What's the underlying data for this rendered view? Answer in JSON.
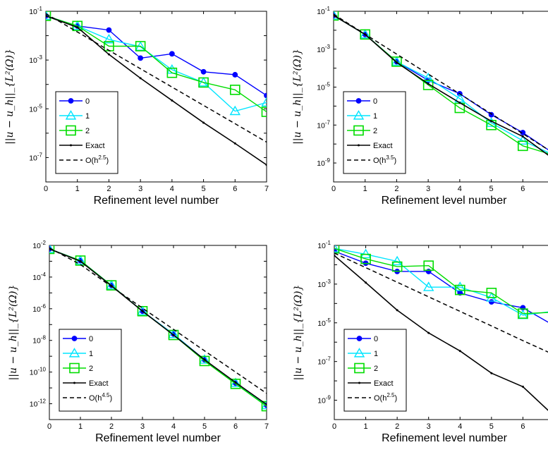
{
  "chart_data": [
    {
      "type": "line",
      "xlabel": "Refinement level number",
      "ylabel": "||u − u_h||_{L²(Ω)}",
      "yscale": "log",
      "x": [
        0,
        1,
        2,
        3,
        4,
        5,
        6,
        7
      ],
      "xlim": [
        0,
        7
      ],
      "ylim": [
        1e-08,
        0.1
      ],
      "yticks": [
        1e-07,
        1e-05,
        0.001,
        0.1
      ],
      "ytick_labels": [
        {
          "base": "10",
          "exp": "-7"
        },
        {
          "base": "10",
          "exp": "-5"
        },
        {
          "base": "10",
          "exp": "-3"
        },
        {
          "base": "10",
          "exp": "-1"
        }
      ],
      "legend": "bottom-left",
      "series": [
        {
          "name": "0",
          "color": "#0000ff",
          "marker": "circle",
          "dash": "solid",
          "values": [
            0.065,
            0.025,
            0.017,
            0.0012,
            0.0018,
            0.00033,
            0.00025,
            3.5e-05
          ]
        },
        {
          "name": "1",
          "color": "#00e5ff",
          "marker": "triangle",
          "dash": "solid",
          "values": [
            0.065,
            0.025,
            0.007,
            0.0035,
            0.0004,
            0.00012,
            8e-06,
            1.8e-05
          ]
        },
        {
          "name": "2",
          "color": "#00dd00",
          "marker": "square",
          "dash": "solid",
          "values": [
            0.065,
            0.025,
            0.0037,
            0.0037,
            0.0003,
            0.00012,
            6e-05,
            7.5e-06
          ]
        },
        {
          "name": "Exact",
          "color": "#000000",
          "marker": "dot",
          "dash": "solid",
          "values": [
            0.065,
            0.022,
            0.0017,
            0.00018,
            2.2e-05,
            2.7e-06,
            3.8e-07,
            5e-08
          ]
        },
        {
          "name": "",
          "color": "#000000",
          "marker": "none",
          "dash": "dashed",
          "values": [
            0.08,
            0.0142,
            0.0025,
            0.00044,
            7.8e-05,
            1.38e-05,
            2.45e-06,
            4.3e-07
          ]
        }
      ],
      "legend_extra": {
        "label": "O(h",
        "exp": "2.5",
        "close": ")"
      }
    },
    {
      "type": "line",
      "xlabel": "Refinement level number",
      "ylabel": "||u − u_h||_{L²(Ω)}",
      "yscale": "log",
      "x": [
        0,
        1,
        2,
        3,
        4,
        5,
        6,
        7
      ],
      "xlim": [
        0,
        7
      ],
      "ylim": [
        1e-10,
        0.1
      ],
      "yticks": [
        1e-09,
        1e-07,
        1e-05,
        0.001,
        0.1
      ],
      "ytick_labels": [
        {
          "base": "10",
          "exp": "-9"
        },
        {
          "base": "10",
          "exp": "-7"
        },
        {
          "base": "10",
          "exp": "-5"
        },
        {
          "base": "10",
          "exp": "-3"
        },
        {
          "base": "10",
          "exp": "-1"
        }
      ],
      "legend": "bottom-left",
      "series": [
        {
          "name": "0",
          "color": "#0000ff",
          "marker": "circle",
          "dash": "solid",
          "values": [
            0.06,
            0.006,
            0.00022,
            2.3e-05,
            4.5e-06,
            3.5e-07,
            4e-08,
            3e-09
          ]
        },
        {
          "name": "1",
          "color": "#00e5ff",
          "marker": "triangle",
          "dash": "solid",
          "values": [
            0.06,
            0.006,
            0.00022,
            3e-05,
            2.5e-06,
            1.3e-07,
            1.5e-08,
            2.5e-09
          ]
        },
        {
          "name": "2",
          "color": "#00dd00",
          "marker": "square",
          "dash": "solid",
          "values": [
            0.06,
            0.006,
            0.00022,
            1.3e-05,
            8e-07,
            1e-07,
            8e-09,
            2.5e-09
          ]
        },
        {
          "name": "Exact",
          "color": "#000000",
          "marker": "dot",
          "dash": "solid",
          "values": [
            0.06,
            0.006,
            0.0002,
            1.5e-05,
            1.5e-06,
            1.6e-07,
            2.5e-08,
            1.5e-09
          ]
        },
        {
          "name": "",
          "color": "#000000",
          "marker": "none",
          "dash": "dashed",
          "values": [
            0.07,
            0.0062,
            0.00055,
            4.9e-05,
            4.4e-06,
            3.9e-07,
            3.5e-08,
            3.1e-09
          ]
        }
      ],
      "legend_extra": {
        "label": "O(h",
        "exp": "3.5",
        "close": ")"
      }
    },
    {
      "type": "line",
      "xlabel": "Refinement level number",
      "ylabel": "||u − u_h||_{L²(Ω)}",
      "yscale": "log",
      "x": [
        0,
        1,
        2,
        3,
        4,
        5,
        6,
        7
      ],
      "xlim": [
        0,
        7
      ],
      "ylim": [
        1e-13,
        0.01
      ],
      "yticks": [
        1e-12,
        1e-10,
        1e-08,
        1e-06,
        0.0001,
        0.01
      ],
      "ytick_labels": [
        {
          "base": "10",
          "exp": "-12"
        },
        {
          "base": "10",
          "exp": "-10"
        },
        {
          "base": "10",
          "exp": "-8"
        },
        {
          "base": "10",
          "exp": "-6"
        },
        {
          "base": "10",
          "exp": "-4"
        },
        {
          "base": "10",
          "exp": "-2"
        }
      ],
      "legend": "bottom-left",
      "series": [
        {
          "name": "0",
          "color": "#0000ff",
          "marker": "circle",
          "dash": "solid",
          "values": [
            0.006,
            0.0011,
            3e-05,
            7e-07,
            2.5e-08,
            6e-10,
            2e-11,
            8e-13
          ]
        },
        {
          "name": "1",
          "color": "#00e5ff",
          "marker": "triangle",
          "dash": "solid",
          "values": [
            0.006,
            0.0011,
            3e-05,
            7e-07,
            2.5e-08,
            6e-10,
            2e-11,
            8e-13
          ]
        },
        {
          "name": "2",
          "color": "#00dd00",
          "marker": "square",
          "dash": "solid",
          "values": [
            0.006,
            0.0011,
            3e-05,
            7e-07,
            2.2e-08,
            5e-10,
            1.8e-11,
            7e-13
          ]
        },
        {
          "name": "Exact",
          "color": "#000000",
          "marker": "dot",
          "dash": "solid",
          "values": [
            0.006,
            0.001,
            2.8e-05,
            7e-07,
            2.2e-08,
            6e-10,
            2.2e-11,
            9e-13
          ]
        },
        {
          "name": "",
          "color": "#000000",
          "marker": "none",
          "dash": "dashed",
          "values": [
            0.007,
            0.00062,
            2.5e-05,
            1.1e-06,
            5e-08,
            2.2e-09,
            1e-10,
            4.5e-12
          ]
        }
      ],
      "legend_extra": {
        "label": "O(h",
        "exp": "4.5",
        "close": ")"
      }
    },
    {
      "type": "line",
      "xlabel": "Refinement level number",
      "ylabel": "||u − u_h||_{L²(Ω)}",
      "yscale": "log",
      "x": [
        0,
        1,
        2,
        3,
        4,
        5,
        6,
        7
      ],
      "xlim": [
        0,
        7
      ],
      "ylim": [
        1e-10,
        0.1
      ],
      "yticks": [
        1e-09,
        1e-07,
        1e-05,
        0.001,
        0.1
      ],
      "ytick_labels": [
        {
          "base": "10",
          "exp": "-9"
        },
        {
          "base": "10",
          "exp": "-7"
        },
        {
          "base": "10",
          "exp": "-5"
        },
        {
          "base": "10",
          "exp": "-3"
        },
        {
          "base": "10",
          "exp": "-1"
        }
      ],
      "legend": "bottom-left",
      "series": [
        {
          "name": "0",
          "color": "#0000ff",
          "marker": "circle",
          "dash": "solid",
          "values": [
            0.05,
            0.012,
            0.0045,
            0.0045,
            0.00035,
            0.00012,
            6e-05,
            7e-06
          ]
        },
        {
          "name": "1",
          "color": "#00e5ff",
          "marker": "triangle",
          "dash": "solid",
          "values": [
            0.07,
            0.035,
            0.015,
            0.0007,
            0.0007,
            0.0002,
            2.5e-05,
            4e-05
          ]
        },
        {
          "name": "2",
          "color": "#00dd00",
          "marker": "square",
          "dash": "solid",
          "values": [
            0.07,
            0.02,
            0.008,
            0.009,
            0.0005,
            0.00035,
            3e-05,
            3.5e-05
          ]
        },
        {
          "name": "Exact",
          "color": "#000000",
          "marker": "dot",
          "dash": "solid",
          "values": [
            0.03,
            0.0012,
            4.5e-05,
            3e-06,
            3.5e-07,
            2.5e-08,
            5e-09,
            1.5e-10
          ]
        },
        {
          "name": "",
          "color": "#000000",
          "marker": "none",
          "dash": "dashed",
          "values": [
            0.04,
            0.0071,
            0.00125,
            0.00022,
            3.9e-05,
            6.9e-06,
            1.2e-06,
            2.2e-07
          ]
        }
      ],
      "legend_extra": {
        "label": "O(h",
        "exp": "2.5",
        "close": ")"
      }
    }
  ]
}
